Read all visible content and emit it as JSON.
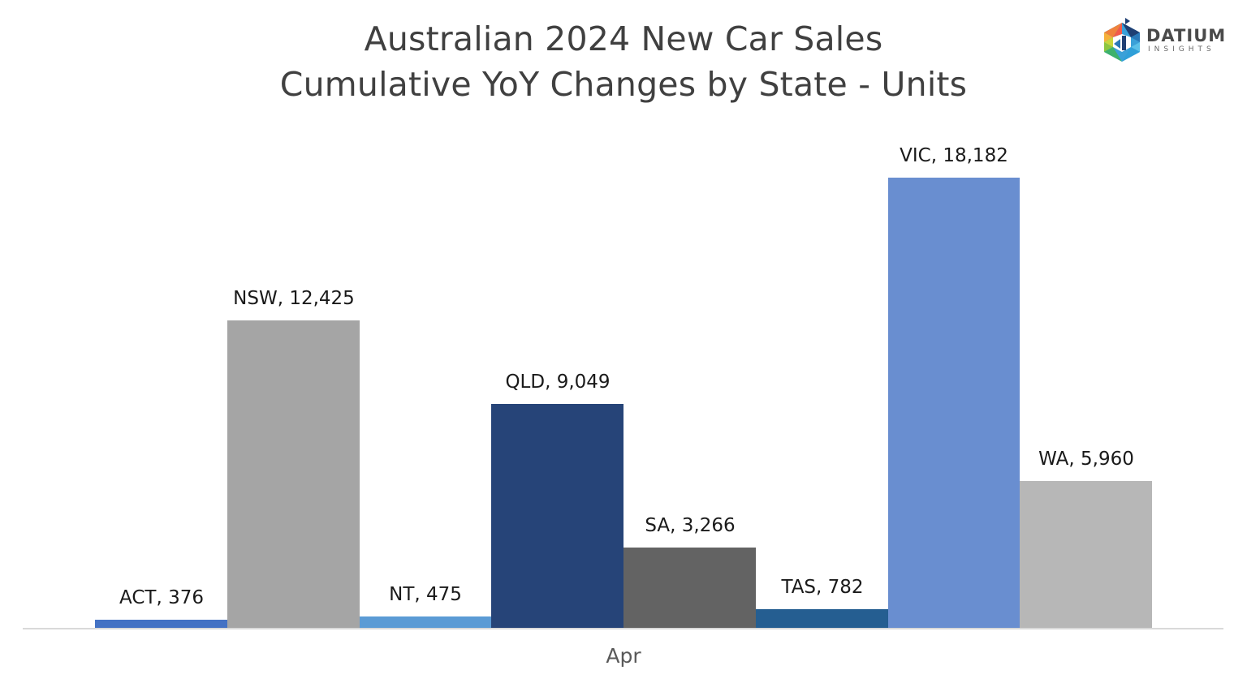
{
  "header": {
    "title_line1": "Australian 2024 New Car Sales",
    "title_line2": "Cumulative YoY Changes by State - Units"
  },
  "logo": {
    "name": "DATIUM",
    "subtitle": "INSIGHTS"
  },
  "chart_data": {
    "type": "bar",
    "title": "Australian 2024 New Car Sales Cumulative YoY Changes by State - Units",
    "xlabel": "",
    "ylabel": "",
    "categories": [
      "Apr"
    ],
    "series": [
      {
        "name": "ACT",
        "values": [
          376
        ],
        "label": "ACT, 376",
        "color": "#4472C4"
      },
      {
        "name": "NSW",
        "values": [
          12425
        ],
        "label": "NSW, 12,425",
        "color": "#A5A5A5"
      },
      {
        "name": "NT",
        "values": [
          475
        ],
        "label": "NT, 475",
        "color": "#5B9BD5"
      },
      {
        "name": "QLD",
        "values": [
          9049
        ],
        "label": "QLD, 9,049",
        "color": "#264478"
      },
      {
        "name": "SA",
        "values": [
          3266
        ],
        "label": "SA, 3,266",
        "color": "#636363"
      },
      {
        "name": "TAS",
        "values": [
          782
        ],
        "label": "TAS, 782",
        "color": "#255E91"
      },
      {
        "name": "VIC",
        "values": [
          18182
        ],
        "label": "VIC, 18,182",
        "color": "#698ED0"
      },
      {
        "name": "WA",
        "values": [
          5960
        ],
        "label": "WA, 5,960",
        "color": "#B7B7B7"
      }
    ],
    "ylim": [
      0,
      18182
    ],
    "grid": false,
    "legend": "none",
    "data_labels": "series name, value"
  }
}
